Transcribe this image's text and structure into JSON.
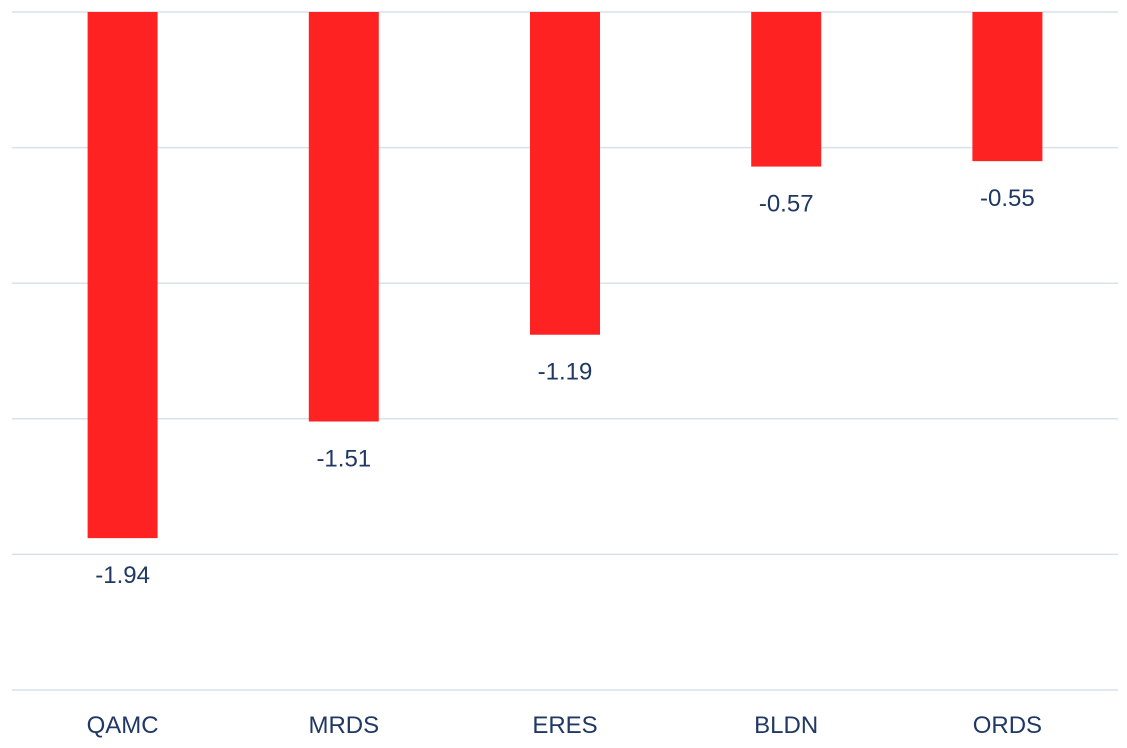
{
  "chart_data": {
    "type": "bar",
    "title": "",
    "xlabel": "",
    "ylabel": "",
    "categories": [
      "QAMC",
      "MRDS",
      "ERES",
      "BLDN",
      "ORDS"
    ],
    "values": [
      -1.94,
      -1.51,
      -1.19,
      -0.57,
      -0.55
    ],
    "value_labels": [
      "-1.94",
      "-1.51",
      "-1.19",
      "-0.57",
      "-0.55"
    ],
    "ylim": [
      -2.5,
      0
    ],
    "grid": true,
    "legend": "none",
    "bar_color": "#ff2222",
    "label_color": "#1f3864",
    "grid_color": "#d9e1ea"
  }
}
